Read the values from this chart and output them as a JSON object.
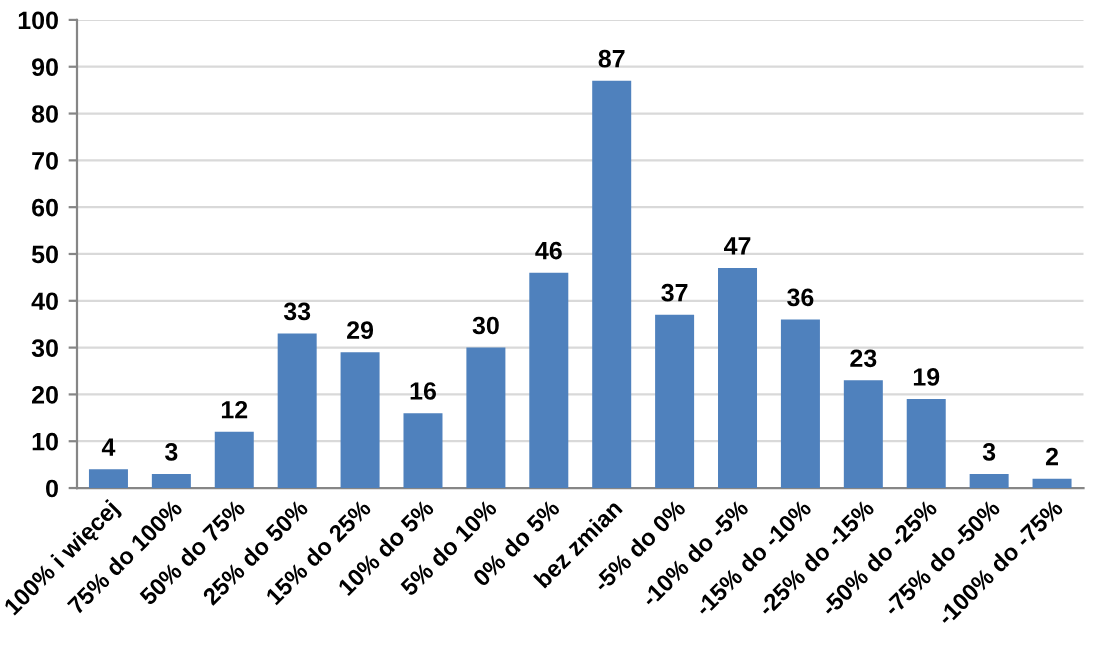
{
  "chart_data": {
    "type": "bar",
    "categories": [
      "100% i więcej",
      "75% do 100%",
      "50% do 75%",
      "25% do 50%",
      "15% do 25%",
      "10% do 5%",
      "5% do 10%",
      "0% do 5%",
      "bez zmian",
      "-5% do 0%",
      "-10% do -5%",
      "-15% do -10%",
      "-25% do -15%",
      "-50% do -25%",
      "-75% do -50%",
      "-100% do -75%"
    ],
    "values": [
      4,
      3,
      12,
      33,
      29,
      16,
      30,
      46,
      87,
      37,
      47,
      36,
      23,
      19,
      3,
      2
    ],
    "color": "#4f81bd",
    "ylim": [
      0,
      100
    ],
    "yticks": [
      0,
      10,
      20,
      30,
      40,
      50,
      60,
      70,
      80,
      90,
      100
    ],
    "grid": "y",
    "data_labels": true
  }
}
